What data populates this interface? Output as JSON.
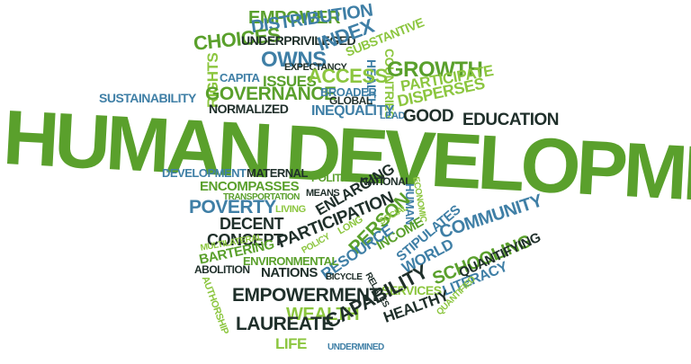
{
  "colors": {
    "green": "#5aa02c",
    "light_green": "#8cc63f",
    "blue": "#3f7fa6",
    "dark": "#1f2f2a"
  },
  "words": {
    "human_development": "HUMAN DEVELOPMENT",
    "empower": "EMPOWER",
    "distribution": "DISTRIBUTION",
    "choices": "CHOICES",
    "underprivileged": "UNDERPRIVILEGED",
    "index": "INDEX",
    "owns": "OWNS",
    "substantive": "SUBSTANTIVE",
    "expectancy": "EXPECTANCY",
    "countries": "COUNTRIES",
    "health": "HEALTH",
    "growth": "GROWTH",
    "participate": "PARTICIPATE",
    "disperses": "DISPERSES",
    "rights": "RIGHTS",
    "capita": "CAPITA",
    "issues": "ISSUES",
    "access": "ACCESS",
    "governance": "GOVERNANCE",
    "broader": "BROADER",
    "global": "GLOBAL",
    "sustainability": "SUSTAINABILITY",
    "normalized": "NORMALIZED",
    "inequality": "INEQUALITY",
    "lead": "LEAD",
    "good": "GOOD",
    "education": "EDUCATION",
    "development": "DEVELOPMENT",
    "maternal": "MATERNAL",
    "political": "POLITICAL",
    "national": "NATIONAL",
    "economic": "ECONOMIC",
    "human": "HUMAN",
    "encompasses": "ENCOMPASSES",
    "means": "MEANS",
    "transportation": "TRANSPORTATION",
    "living": "LIVING",
    "poverty": "POVERTY",
    "enlarging": "ENLARGING",
    "decent": "DECENT",
    "participation": "PARTICIPATION",
    "concept": "CONCEPT",
    "long": "LONG",
    "person": "PERSON",
    "social": "SOCIAL",
    "income": "INCOME",
    "stipulates": "STIPULATES",
    "community": "COMMUNITY",
    "world": "WORLD",
    "policy": "POLICY",
    "resource": "RESOURCE",
    "relates": "RELATES",
    "multilateral": "MULTILATERAL",
    "bartering": "BARTERING",
    "environmental": "ENVIRONMENTAL",
    "nations": "NATIONS",
    "bicycle": "BICYCLE",
    "schooling": "SCHOOLING",
    "quantifying": "QUANTIFYING",
    "abolition": "ABOLITION",
    "services": "SERVICES",
    "literacy": "LITERACY",
    "authorship": "AUTHORSHIP",
    "empowerment": "EMPOWERMENT",
    "wealth": "WEALTH",
    "capability": "CAPABILITY",
    "healthy": "HEALTHY",
    "quantified": "QUANTIFIED",
    "laureate": "LAUREATE",
    "life": "LIFE",
    "undermined": "UNDERMINED"
  }
}
